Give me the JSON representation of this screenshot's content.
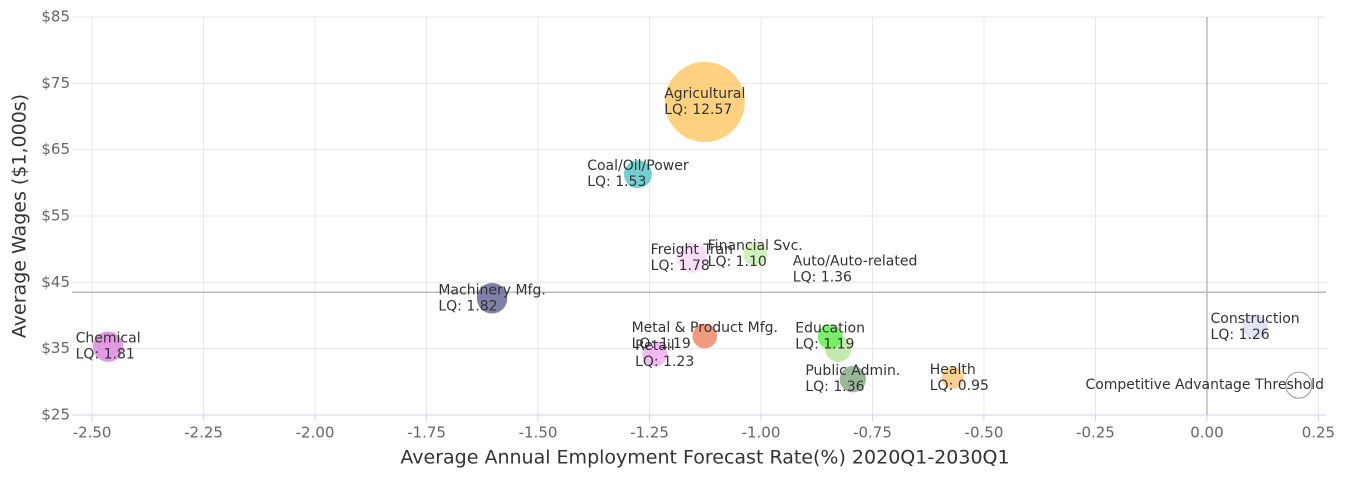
{
  "chart_data": {
    "type": "bubble",
    "xlabel": "Average Annual Employment Forecast Rate(%) 2020Q1-2030Q1",
    "ylabel": "Average Wages ($1,000s)",
    "xlim": [
      -2.545,
      0.267
    ],
    "ylim": [
      25,
      85
    ],
    "xticks": [
      {
        "value": -2.5,
        "label": "-2.50"
      },
      {
        "value": -2.25,
        "label": "-2.25"
      },
      {
        "value": -2,
        "label": "-2.00"
      },
      {
        "value": -1.75,
        "label": "-1.75"
      },
      {
        "value": -1.5,
        "label": "-1.50"
      },
      {
        "value": -1.25,
        "label": "-1.25"
      },
      {
        "value": -1,
        "label": "-1.00"
      },
      {
        "value": -0.75,
        "label": "-0.75"
      },
      {
        "value": -0.5,
        "label": "-0.50"
      },
      {
        "value": -0.25,
        "label": "-0.25"
      },
      {
        "value": 0,
        "label": "0.00"
      },
      {
        "value": 0.25,
        "label": "0.25"
      }
    ],
    "yticks": [
      {
        "value": 25,
        "label": "$25"
      },
      {
        "value": 35,
        "label": "$35"
      },
      {
        "value": 45,
        "label": "$45"
      },
      {
        "value": 55,
        "label": "$55"
      },
      {
        "value": 65,
        "label": "$65"
      },
      {
        "value": 75,
        "label": "$75"
      },
      {
        "value": 85,
        "label": "$85"
      }
    ],
    "grid": true,
    "threshold_x": 0,
    "threshold_y": 43.5,
    "points": [
      {
        "name": "Agricultural",
        "x": -1.126,
        "y": 72.2,
        "size": 12.57,
        "size_label": "LQ: 12.57",
        "color": "#ffc96b"
      },
      {
        "name": "Coal/Oil/Power",
        "x": -1.276,
        "y": 61.3,
        "size": 1.53,
        "size_label": "LQ: 1.53",
        "color": "#5cc8c8"
      },
      {
        "name": "Freight Tran",
        "x": -1.155,
        "y": 48.7,
        "size": 1.78,
        "size_label": "LQ: 1.78",
        "color": "#f8d8f8"
      },
      {
        "name": "Financial Svc.",
        "x": -1.013,
        "y": 49.3,
        "size": 1.1,
        "size_label": "LQ: 1.10",
        "color": "#c8f0b0"
      },
      {
        "name": "Auto/Auto-related",
        "x": -0.827,
        "y": 35.0,
        "size": 1.36,
        "size_label": "LQ: 1.36",
        "color": "#b8e8a0",
        "label_x": -0.789,
        "label_y": 46.9
      },
      {
        "name": "Machinery Mfg.",
        "x": -1.603,
        "y": 42.6,
        "size": 1.82,
        "size_label": "LQ: 1.82",
        "color": "#6b6b9b"
      },
      {
        "name": "Chemical",
        "x": -2.464,
        "y": 35.3,
        "size": 1.81,
        "size_label": "LQ: 1.81",
        "color": "#dd88dd"
      },
      {
        "name": "Metal & Product Mfg.",
        "x": -1.126,
        "y": 36.9,
        "size": 1.19,
        "size_label": "LQ: 1.19",
        "color": "#f08868"
      },
      {
        "name": "Retail",
        "x": -1.238,
        "y": 34.2,
        "size": 1.23,
        "size_label": "LQ: 1.23",
        "color": "#f0b0f0"
      },
      {
        "name": "Education",
        "x": -0.845,
        "y": 36.8,
        "size": 1.19,
        "size_label": "LQ: 1.19",
        "color": "#66ee55"
      },
      {
        "name": "Public Admin.",
        "x": -0.794,
        "y": 30.4,
        "size": 1.36,
        "size_label": "LQ: 1.36",
        "color": "#88aa88"
      },
      {
        "name": "Health",
        "x": -0.57,
        "y": 30.6,
        "size": 0.95,
        "size_label": "LQ: 0.95",
        "color": "#ffc880"
      },
      {
        "name": "Construction",
        "x": 0.108,
        "y": 38.3,
        "size": 1.26,
        "size_label": "LQ: 1.26",
        "color": "#ddddf8"
      },
      {
        "name": "Competitive Advantage Threshold",
        "x": 0.206,
        "y": 29.5,
        "color": "#ffffff"
      }
    ]
  }
}
